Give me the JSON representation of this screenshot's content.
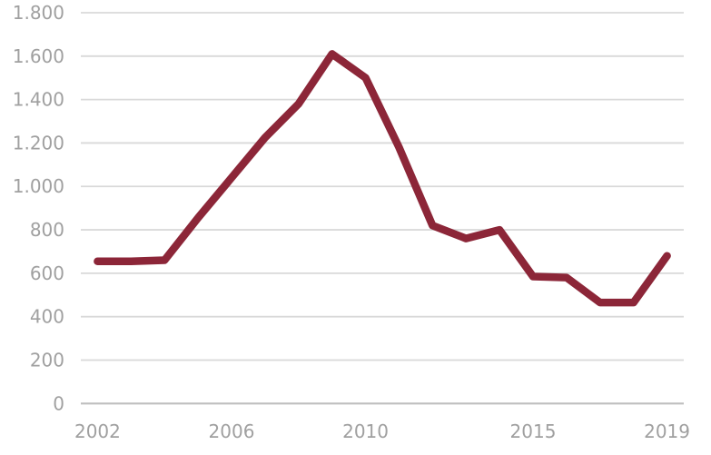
{
  "chart_data": {
    "type": "line",
    "title": "",
    "xlabel": "",
    "ylabel": "",
    "x": [
      2002,
      2003,
      2004,
      2005,
      2006,
      2007,
      2008,
      2009,
      2010,
      2011,
      2012,
      2013,
      2014,
      2015,
      2016,
      2017,
      2018,
      2019
    ],
    "series": [
      {
        "name": "series-1",
        "color": "#8C2638",
        "values": [
          655,
          655,
          660,
          855,
          1040,
          1225,
          1380,
          1610,
          1500,
          1180,
          820,
          760,
          800,
          585,
          580,
          465,
          465,
          680
        ]
      }
    ],
    "ylim": [
      0,
      1800
    ],
    "ytick_interval": 200,
    "ytick_labels": [
      "0",
      "200",
      "400",
      "600",
      "800",
      "1.000",
      "1.200",
      "1.400",
      "1.600",
      "1.800"
    ],
    "xticks": [
      {
        "year": 2002,
        "label": "2002"
      },
      {
        "year": 2006,
        "label": "2006"
      },
      {
        "year": 2010,
        "label": "2010"
      },
      {
        "year": 2015,
        "label": "2015"
      },
      {
        "year": 2019,
        "label": "2019"
      }
    ],
    "grid": "horizontal",
    "legend": false,
    "colors": {
      "line": "#8C2638",
      "gridline": "#D9D9D9",
      "axis_line": "#BFBFBF",
      "tick_label": "#A0A0A0",
      "background": "#FFFFFF"
    }
  }
}
